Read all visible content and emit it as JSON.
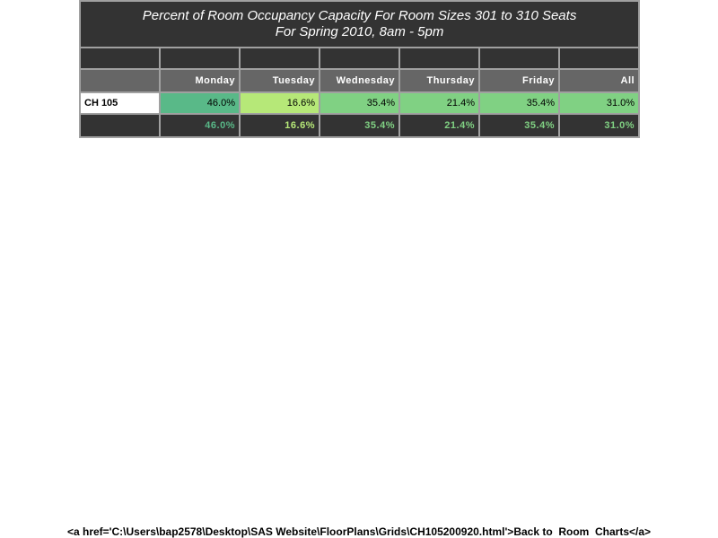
{
  "report": {
    "title_line1": "Percent of Room Occupancy Capacity For Room Sizes 301 to 310 Seats",
    "title_line2": "For Spring 2010, 8am - 5pm",
    "days": [
      "Monday",
      "Tuesday",
      "Wednesday",
      "Thursday",
      "Friday",
      "All"
    ],
    "row": {
      "label": "CH 105",
      "values": [
        "46.0%",
        "16.6%",
        "35.4%",
        "21.4%",
        "35.4%",
        "31.0%"
      ],
      "cell_colors": [
        "#59b988",
        "#b6e878",
        "#80d183",
        "#80d183",
        "#80d183",
        "#80d183"
      ]
    },
    "totals": {
      "values": [
        "46.0%",
        "16.6%",
        "35.4%",
        "21.4%",
        "35.4%",
        "31.0%"
      ],
      "text_colors": [
        "#59b988",
        "#b6e878",
        "#80d183",
        "#80d183",
        "#80d183",
        "#80d183"
      ]
    }
  },
  "footer": {
    "link_text": "<a href='C:\\Users\\bap2578\\Desktop\\SAS Website\\FloorPlans\\Grids\\CH105200920.html'>Back to  Room  Charts</a>"
  }
}
